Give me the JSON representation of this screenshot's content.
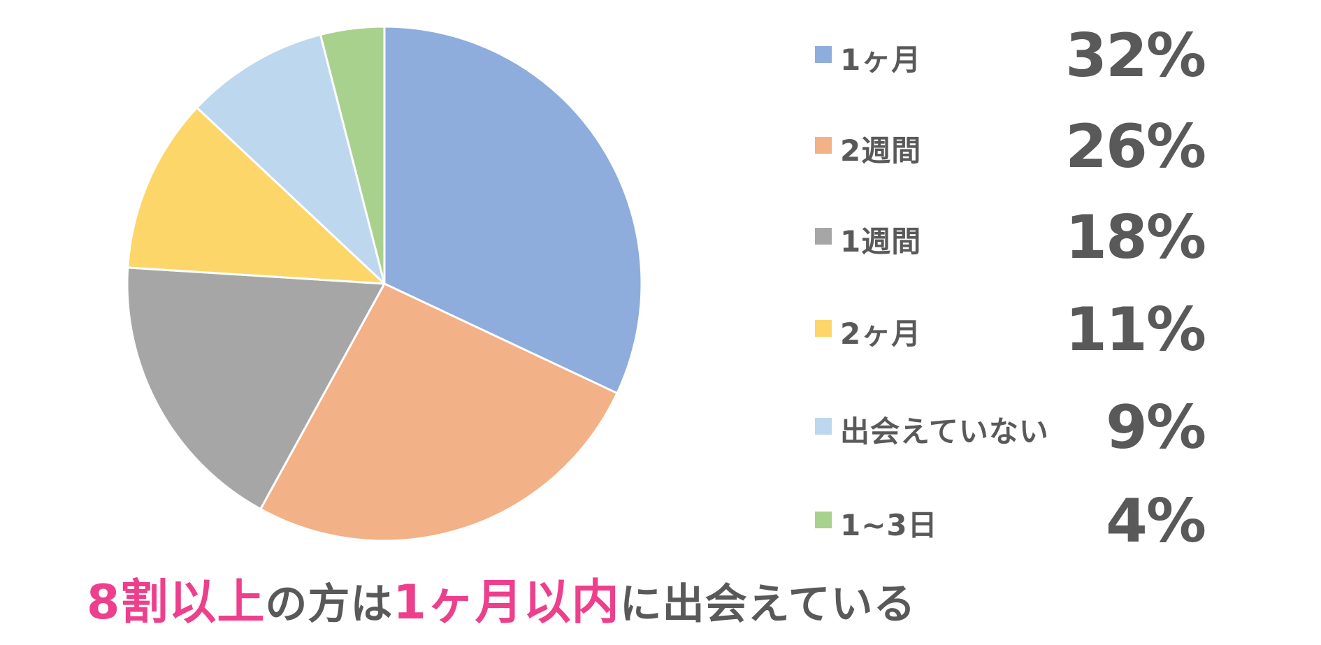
{
  "chart_data": {
    "type": "pie",
    "categories": [
      "1ヶ月",
      "2週間",
      "1週間",
      "2ヶ月",
      "出会えていない",
      "1~3日"
    ],
    "values": [
      32,
      26,
      18,
      11,
      9,
      4
    ],
    "value_labels": [
      "32%",
      "26%",
      "18%",
      "11%",
      "9%",
      "4%"
    ],
    "colors": [
      "#8eacdc",
      "#f2b186",
      "#a6a6a6",
      "#fdd66a",
      "#bdd7ee",
      "#a9d18e"
    ],
    "start_angle": "12 o'clock",
    "direction": "clockwise",
    "legend_position": "right"
  },
  "caption": {
    "part1": "8割以上",
    "part2": "の方は",
    "part3": "1ヶ月以内",
    "part4": "に出会えている"
  },
  "colors": {
    "text": "#595959",
    "accent": "#ee3f8c",
    "slice_border": "#ffffff"
  }
}
